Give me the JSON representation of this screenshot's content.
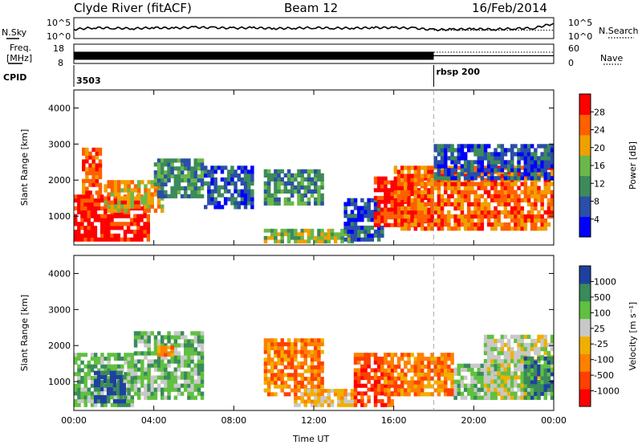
{
  "header": {
    "title": "Clyde River (fitACF)",
    "beam": "Beam 12",
    "date": "16/Feb/2014"
  },
  "side_labels": {
    "nsky": "N.Sky",
    "nsearch": "N.Search",
    "freq": "Freq.",
    "freq_unit": "[MHz]",
    "nave": "Nave",
    "cpid": "CPID"
  },
  "noise_axis": {
    "top": "10^5",
    "bottom": "10^0",
    "right_top": "10^5",
    "right_bottom": "10^0"
  },
  "freq_axis": {
    "left_top": "18",
    "left_bottom": "8",
    "right_top": "60",
    "right_bottom": "0"
  },
  "cpid_labels": [
    {
      "text": "3503",
      "time_hr": 0.0
    },
    {
      "text": "rbsp  200",
      "time_hr": 18.0
    }
  ],
  "panel_power": {
    "ylabel": "Slant Range [km]",
    "colorbar_label": "Power [dB]",
    "colorbar_ticks": [
      "28",
      "24",
      "20",
      "16",
      "12",
      "8",
      "4"
    ]
  },
  "panel_velocity": {
    "ylabel": "Slant Range [km]",
    "colorbar_label": "Velocity [m s⁻¹]",
    "colorbar_ticks": [
      "1000",
      "500",
      "100",
      "25",
      "-25",
      "-100",
      "-500",
      "-1000"
    ]
  },
  "xlabel": "Time UT",
  "colors": {
    "power_scale": [
      "#0000ff",
      "#2a4fa8",
      "#3d8a5a",
      "#6ab84a",
      "#f0a000",
      "#ff6000",
      "#ff0000"
    ],
    "velocity_scale": [
      "#ff0000",
      "#ff4000",
      "#ff8000",
      "#f0b000",
      "#c8c8c8",
      "#60c040",
      "#3a8a5a",
      "#2040a0"
    ]
  },
  "chart_data": [
    {
      "type": "line",
      "title": "N.Sky / N.Search",
      "x_unit": "hours UT",
      "xlim": [
        0,
        24
      ],
      "ylim_log10": [
        0,
        5
      ],
      "series": [
        {
          "name": "N.Sky",
          "x": [
            0,
            1,
            2,
            3,
            4,
            5,
            6,
            7,
            8,
            9,
            10,
            11,
            12,
            13,
            14,
            15,
            16,
            17,
            18,
            19,
            20,
            21,
            22,
            23,
            24
          ],
          "y_log10": [
            2.2,
            2.6,
            2.5,
            2.4,
            2.6,
            2.5,
            2.7,
            2.6,
            2.5,
            2.6,
            2.4,
            2.5,
            2.6,
            2.5,
            2.5,
            2.6,
            2.6,
            2.5,
            2.1,
            2.2,
            2.3,
            2.2,
            2.4,
            2.5,
            3.6
          ]
        },
        {
          "name": "N.Search",
          "x": [
            18,
            24
          ],
          "y_log10": [
            2.0,
            2.0
          ]
        }
      ]
    },
    {
      "type": "line",
      "title": "Freq. / Nave",
      "x_unit": "hours UT",
      "xlim": [
        0,
        24
      ],
      "series": [
        {
          "name": "Freq.",
          "x": [
            0,
            18
          ],
          "y": [
            12,
            12
          ],
          "ylim": [
            8,
            18
          ]
        },
        {
          "name": "Nave",
          "x": [
            18,
            24
          ],
          "y": [
            35,
            35
          ],
          "ylim": [
            0,
            60
          ]
        }
      ]
    },
    {
      "type": "heatmap",
      "title": "Power",
      "xlabel": "Time UT",
      "ylabel": "Slant Range [km]",
      "xlim": [
        0,
        24
      ],
      "ylim": [
        200,
        4500
      ],
      "xticks": [
        "00:00",
        "04:00",
        "08:00",
        "12:00",
        "16:00",
        "20:00",
        "00:00"
      ],
      "yticks": [
        1000,
        2000,
        3000,
        4000
      ],
      "colorbar": {
        "label": "Power [dB]",
        "range": [
          0,
          32
        ]
      },
      "regions": [
        {
          "t": [
            0.0,
            3.8
          ],
          "r": [
            300,
            1600
          ],
          "value": 28
        },
        {
          "t": [
            0.4,
            1.4
          ],
          "r": [
            1600,
            2900
          ],
          "value": 24
        },
        {
          "t": [
            1.5,
            4.5
          ],
          "r": [
            1100,
            2000
          ],
          "value": 20
        },
        {
          "t": [
            4.0,
            6.5
          ],
          "r": [
            1500,
            2600
          ],
          "value": 12
        },
        {
          "t": [
            6.5,
            9.0
          ],
          "r": [
            1200,
            2400
          ],
          "value": 8
        },
        {
          "t": [
            9.5,
            12.5
          ],
          "r": [
            1300,
            2300
          ],
          "value": 12
        },
        {
          "t": [
            9.5,
            14.0
          ],
          "r": [
            250,
            650
          ],
          "value": 16
        },
        {
          "t": [
            13.5,
            15.5
          ],
          "r": [
            300,
            1500
          ],
          "value": 8
        },
        {
          "t": [
            15.0,
            18.0
          ],
          "r": [
            700,
            2100
          ],
          "value": 28
        },
        {
          "t": [
            16.0,
            24.0
          ],
          "r": [
            600,
            2400
          ],
          "value": 24
        },
        {
          "t": [
            18.0,
            24.0
          ],
          "r": [
            2000,
            3000
          ],
          "value": 8
        }
      ]
    },
    {
      "type": "heatmap",
      "title": "Velocity",
      "xlabel": "Time UT",
      "ylabel": "Slant Range [km]",
      "xlim": [
        0,
        24
      ],
      "ylim": [
        200,
        4500
      ],
      "xticks": [
        "00:00",
        "04:00",
        "08:00",
        "12:00",
        "16:00",
        "20:00",
        "00:00"
      ],
      "yticks": [
        1000,
        2000,
        3000,
        4000
      ],
      "colorbar": {
        "label": "Velocity [m s⁻¹]",
        "levels": [
          -1000,
          -500,
          -100,
          -25,
          25,
          100,
          500,
          1000
        ]
      },
      "regions": [
        {
          "t": [
            0.0,
            3.0
          ],
          "r": [
            300,
            1800
          ],
          "value": 100
        },
        {
          "t": [
            1.0,
            2.6
          ],
          "r": [
            400,
            1300
          ],
          "value": 1000
        },
        {
          "t": [
            3.0,
            6.5
          ],
          "r": [
            500,
            2400
          ],
          "value": 100
        },
        {
          "t": [
            4.0,
            5.0
          ],
          "r": [
            1700,
            2000
          ],
          "value": -100
        },
        {
          "t": [
            9.5,
            12.5
          ],
          "r": [
            600,
            2200
          ],
          "value": -100
        },
        {
          "t": [
            11.0,
            14.0
          ],
          "r": [
            300,
            800
          ],
          "value": 0
        },
        {
          "t": [
            14.0,
            16.0
          ],
          "r": [
            300,
            1800
          ],
          "value": -500
        },
        {
          "t": [
            15.5,
            19.0
          ],
          "r": [
            600,
            1800
          ],
          "value": -100
        },
        {
          "t": [
            19.0,
            21.5
          ],
          "r": [
            500,
            1500
          ],
          "value": 100
        },
        {
          "t": [
            20.5,
            24.0
          ],
          "r": [
            500,
            2300
          ],
          "value": 25
        },
        {
          "t": [
            22.5,
            24.0
          ],
          "r": [
            500,
            1700
          ],
          "value": 500
        }
      ]
    }
  ]
}
